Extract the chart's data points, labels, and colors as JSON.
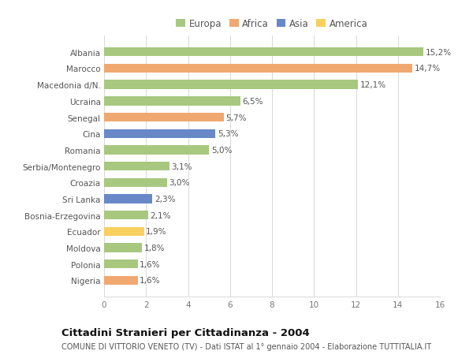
{
  "categories": [
    "Albania",
    "Marocco",
    "Macedonia d/N.",
    "Ucraina",
    "Senegal",
    "Cina",
    "Romania",
    "Serbia/Montenegro",
    "Croazia",
    "Sri Lanka",
    "Bosnia-Erzegovina",
    "Ecuador",
    "Moldova",
    "Polonia",
    "Nigeria"
  ],
  "values": [
    15.2,
    14.7,
    12.1,
    6.5,
    5.7,
    5.3,
    5.0,
    3.1,
    3.0,
    2.3,
    2.1,
    1.9,
    1.8,
    1.6,
    1.6
  ],
  "continents": [
    "Europa",
    "Africa",
    "Europa",
    "Europa",
    "Africa",
    "Asia",
    "Europa",
    "Europa",
    "Europa",
    "Asia",
    "Europa",
    "America",
    "Europa",
    "Europa",
    "Africa"
  ],
  "colors": {
    "Europa": "#a8c880",
    "Africa": "#f0a870",
    "Asia": "#6888c8",
    "America": "#f8d060"
  },
  "labels": [
    "15,2%",
    "14,7%",
    "12,1%",
    "6,5%",
    "5,7%",
    "5,3%",
    "5,0%",
    "3,1%",
    "3,0%",
    "2,3%",
    "2,1%",
    "1,9%",
    "1,8%",
    "1,6%",
    "1,6%"
  ],
  "xlim": [
    0,
    16
  ],
  "xticks": [
    0,
    2,
    4,
    6,
    8,
    10,
    12,
    14,
    16
  ],
  "title": "Cittadini Stranieri per Cittadinanza - 2004",
  "subtitle": "COMUNE DI VITTORIO VENETO (TV) - Dati ISTAT al 1° gennaio 2004 - Elaborazione TUTTITALIA.IT",
  "legend_order": [
    "Europa",
    "Africa",
    "Asia",
    "America"
  ],
  "background_color": "#ffffff",
  "grid_color": "#d8d8d8",
  "bar_height": 0.55,
  "label_fontsize": 7.5,
  "ytick_fontsize": 7.5,
  "xtick_fontsize": 7.5,
  "title_fontsize": 9.5,
  "subtitle_fontsize": 7.0,
  "legend_fontsize": 8.5
}
